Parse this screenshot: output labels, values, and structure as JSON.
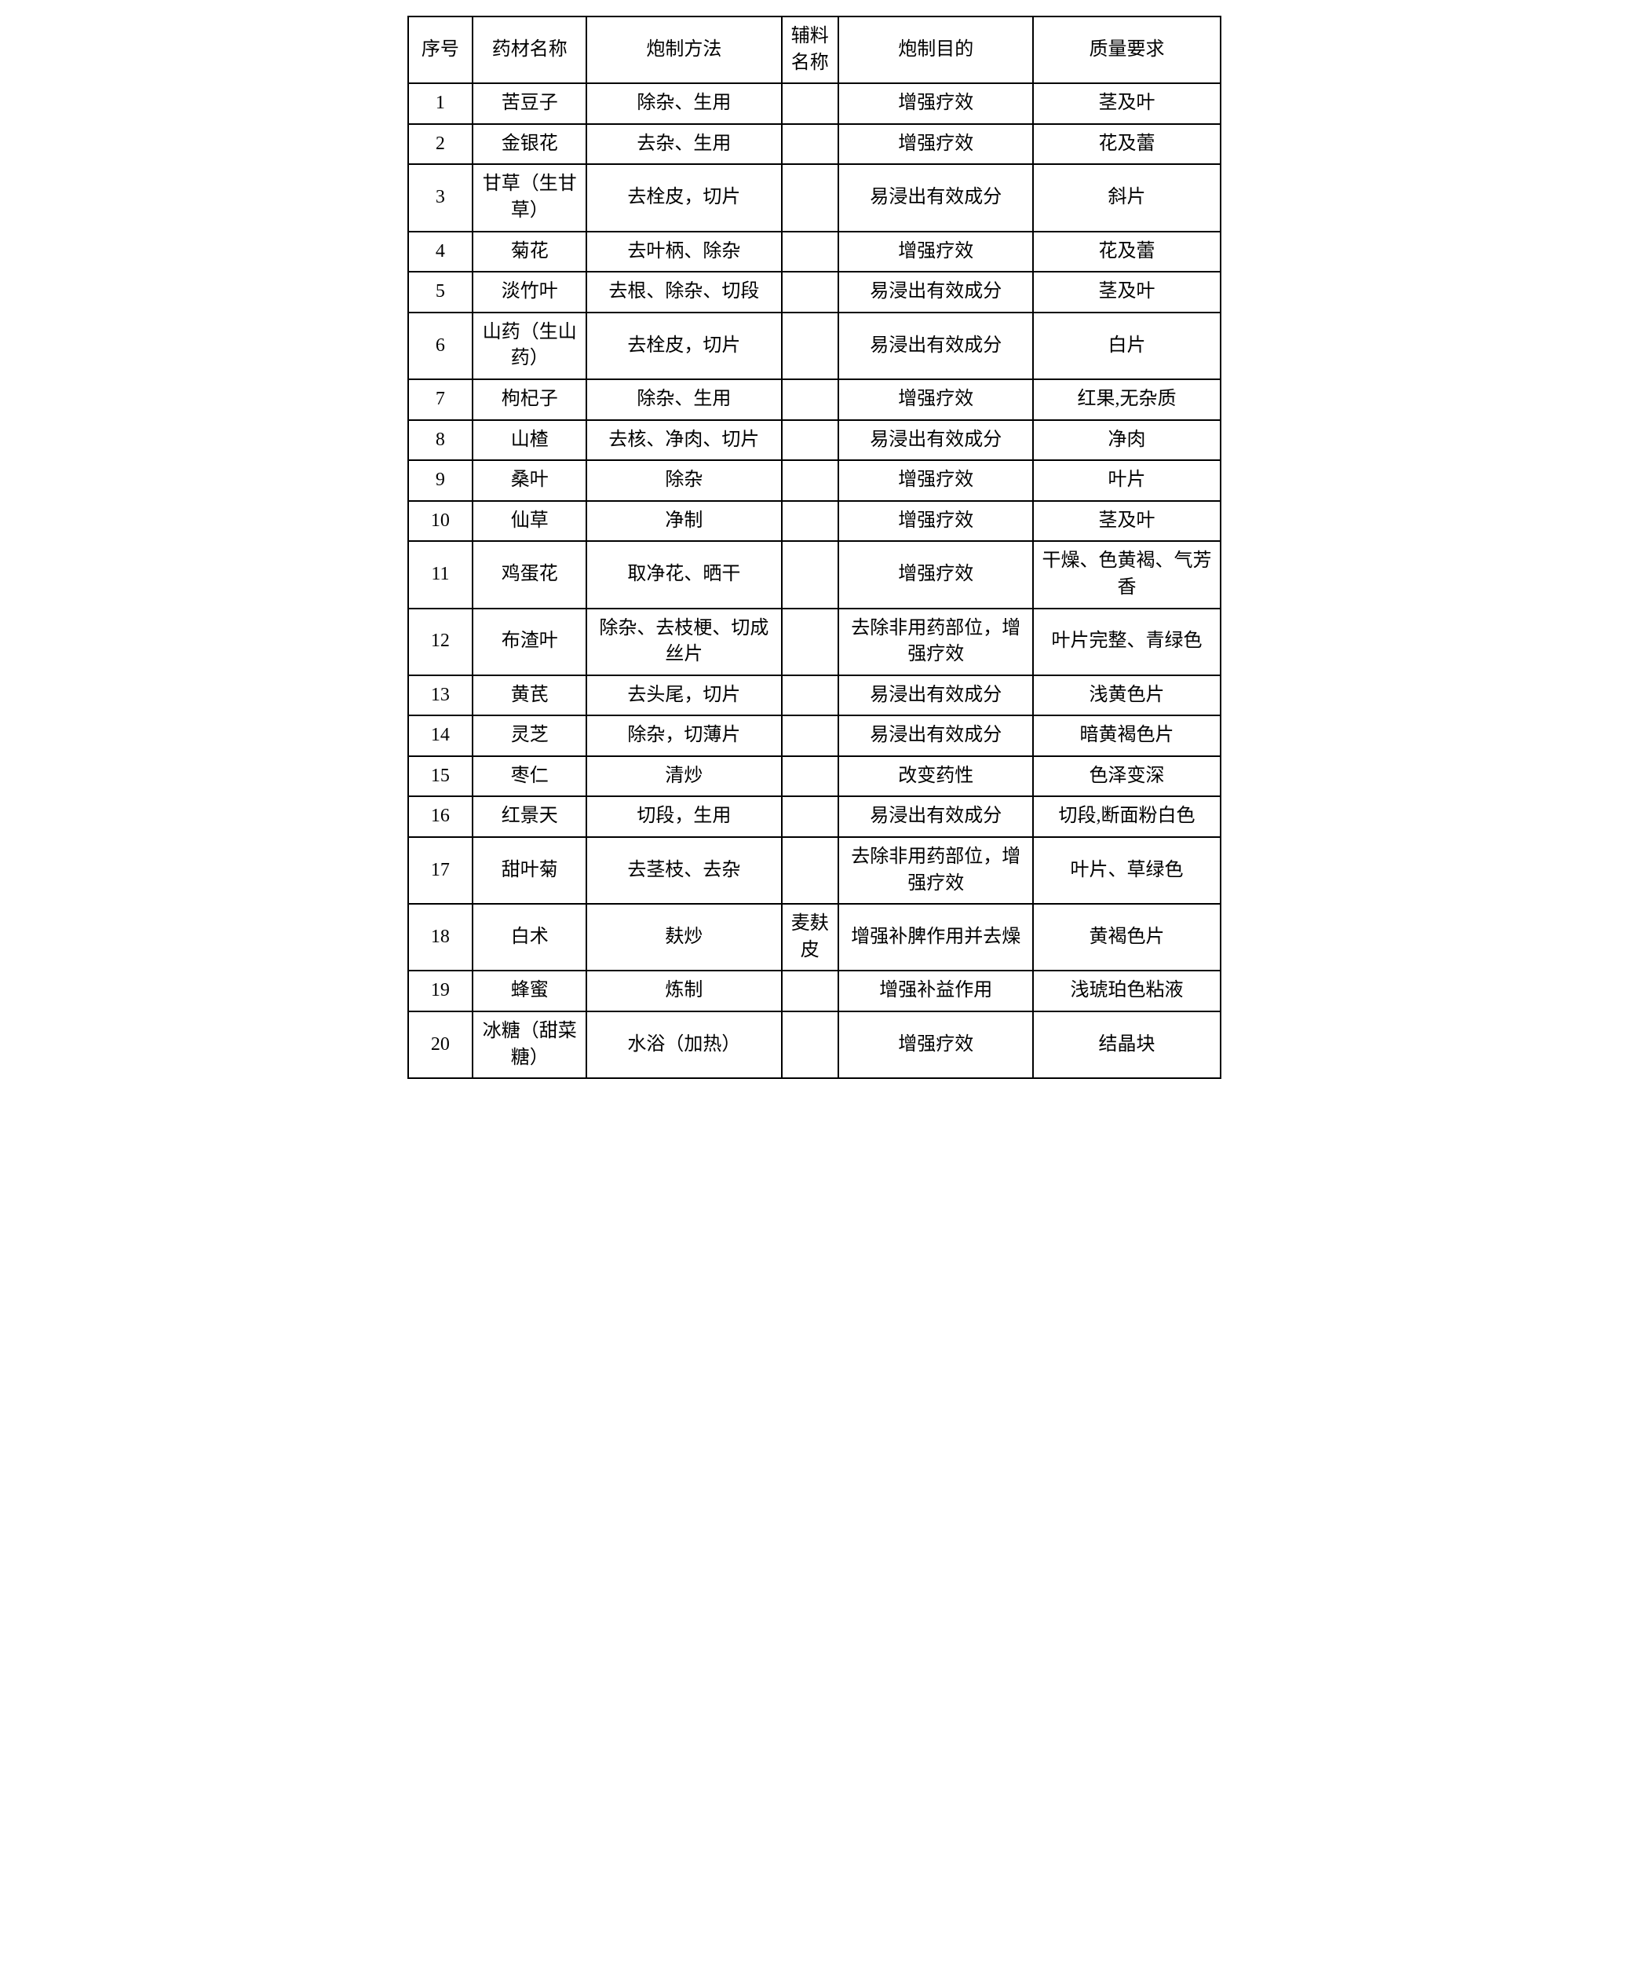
{
  "table": {
    "headers": {
      "seq": "序号",
      "name": "药材名称",
      "method": "炮制方法",
      "aux": "辅料名称",
      "purpose": "炮制目的",
      "quality": "质量要求"
    },
    "rows": [
      {
        "seq": "1",
        "name": "苦豆子",
        "method": "除杂、生用",
        "aux": "",
        "purpose": "增强疗效",
        "quality": "茎及叶"
      },
      {
        "seq": "2",
        "name": "金银花",
        "method": "去杂、生用",
        "aux": "",
        "purpose": "增强疗效",
        "quality": "花及蕾"
      },
      {
        "seq": "3",
        "name": "甘草（生甘草）",
        "method": "去栓皮，切片",
        "aux": "",
        "purpose": "易浸出有效成分",
        "quality": "斜片"
      },
      {
        "seq": "4",
        "name": "菊花",
        "method": "去叶柄、除杂",
        "aux": "",
        "purpose": "增强疗效",
        "quality": "花及蕾"
      },
      {
        "seq": "5",
        "name": "淡竹叶",
        "method": "去根、除杂、切段",
        "aux": "",
        "purpose": "易浸出有效成分",
        "quality": "茎及叶"
      },
      {
        "seq": "6",
        "name": "山药（生山药）",
        "method": "去栓皮，切片",
        "aux": "",
        "purpose": "易浸出有效成分",
        "quality": "白片"
      },
      {
        "seq": "7",
        "name": "枸杞子",
        "method": "除杂、生用",
        "aux": "",
        "purpose": "增强疗效",
        "quality": "红果,无杂质"
      },
      {
        "seq": "8",
        "name": "山楂",
        "method": "去核、净肉、切片",
        "aux": "",
        "purpose": "易浸出有效成分",
        "quality": "净肉"
      },
      {
        "seq": "9",
        "name": "桑叶",
        "method": "除杂",
        "aux": "",
        "purpose": "增强疗效",
        "quality": "叶片"
      },
      {
        "seq": "10",
        "name": "仙草",
        "method": "净制",
        "aux": "",
        "purpose": "增强疗效",
        "quality": "茎及叶"
      },
      {
        "seq": "11",
        "name": "鸡蛋花",
        "method": "取净花、晒干",
        "aux": "",
        "purpose": "增强疗效",
        "quality": "干燥、色黄褐、气芳香"
      },
      {
        "seq": "12",
        "name": "布渣叶",
        "method": "除杂、去枝梗、切成丝片",
        "aux": "",
        "purpose": "去除非用药部位，增强疗效",
        "quality": "叶片完整、青绿色"
      },
      {
        "seq": "13",
        "name": "黄芪",
        "method": "去头尾，切片",
        "aux": "",
        "purpose": "易浸出有效成分",
        "quality": "浅黄色片"
      },
      {
        "seq": "14",
        "name": "灵芝",
        "method": "除杂，切薄片",
        "aux": "",
        "purpose": "易浸出有效成分",
        "quality": "暗黄褐色片"
      },
      {
        "seq": "15",
        "name": "枣仁",
        "method": "清炒",
        "aux": "",
        "purpose": "改变药性",
        "quality": "色泽变深"
      },
      {
        "seq": "16",
        "name": "红景天",
        "method": "切段，生用",
        "aux": "",
        "purpose": "易浸出有效成分",
        "quality": "切段,断面粉白色"
      },
      {
        "seq": "17",
        "name": "甜叶菊",
        "method": "去茎枝、去杂",
        "aux": "",
        "purpose": "去除非用药部位，增强疗效",
        "quality": "叶片、草绿色"
      },
      {
        "seq": "18",
        "name": "白术",
        "method": "麸炒",
        "aux": "麦麸皮",
        "purpose": "增强补脾作用并去燥",
        "quality": "黄褐色片"
      },
      {
        "seq": "19",
        "name": "蜂蜜",
        "method": "炼制",
        "aux": "",
        "purpose": "增强补益作用",
        "quality": "浅琥珀色粘液"
      },
      {
        "seq": "20",
        "name": "冰糖（甜菜糖）",
        "method": "水浴（加热）",
        "aux": "",
        "purpose": "增强疗效",
        "quality": "结晶块"
      }
    ],
    "styling": {
      "border_color": "#000000",
      "border_width": 2,
      "background_color": "#ffffff",
      "text_color": "#000000",
      "font_family": "SimSun",
      "font_size": 24,
      "cell_padding": 8,
      "text_align": "center",
      "column_widths": {
        "seq": "8%",
        "name": "14%",
        "method": "24%",
        "aux": "7%",
        "purpose": "24%",
        "quality": "23%"
      }
    }
  }
}
